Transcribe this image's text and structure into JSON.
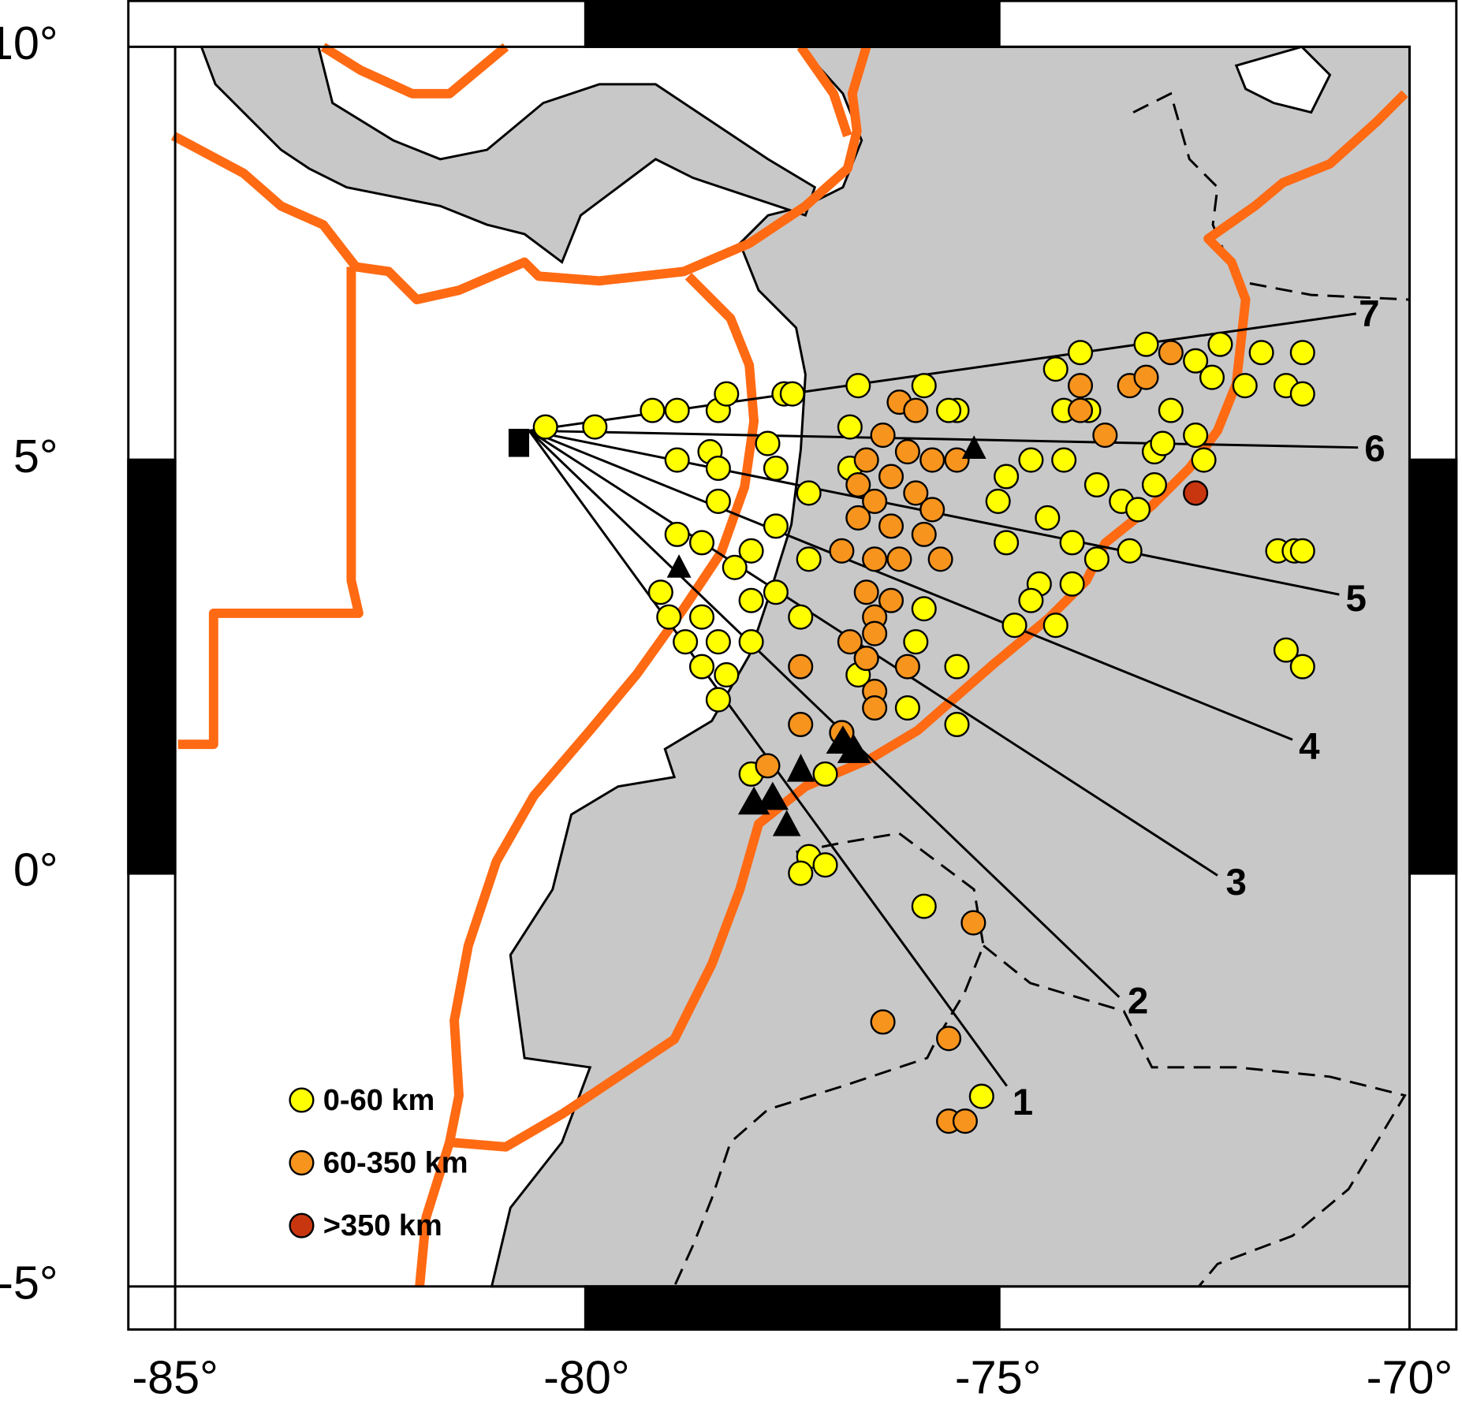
{
  "chart_data": {
    "type": "scatter",
    "xlim": [
      -85,
      -70
    ],
    "ylim": [
      -5,
      10
    ],
    "xticks": [
      {
        "value": -85,
        "label": "-85°"
      },
      {
        "value": -80,
        "label": "-80°"
      },
      {
        "value": -75,
        "label": "-75°"
      },
      {
        "value": -70,
        "label": "-70°"
      }
    ],
    "yticks": [
      {
        "value": 10,
        "label": "10°"
      },
      {
        "value": 5,
        "label": "5°"
      },
      {
        "value": 0,
        "label": "0°"
      },
      {
        "value": -5,
        "label": "-5°"
      }
    ],
    "annotations": [
      "1",
      "2",
      "3",
      "4",
      "5",
      "6",
      "7"
    ],
    "series": [
      {
        "name": "0-60 km",
        "color": "#ffff00",
        "x": [
          -80.5,
          -79.9,
          -79.2,
          -78.9,
          -78.4,
          -78.3,
          -77.6,
          -77.5,
          -76.7,
          -75.9,
          -75.5,
          -76.8,
          -78.9,
          -78.5,
          -78.4,
          -77.8,
          -77.7,
          -77.3,
          -78.9,
          -78.6,
          -78.4,
          -78.0,
          -77.7,
          -77.3,
          -79.1,
          -79.0,
          -78.8,
          -78.6,
          -78.6,
          -78.2,
          -78.0,
          -77.7,
          -77.4,
          -78.4,
          -78.3,
          -78.0,
          -78.4,
          -76.8,
          -74.9,
          -74.6,
          -74.2,
          -75.0,
          -74.9,
          -74.4,
          -74.1,
          -73.8,
          -73.5,
          -73.4,
          -73.8,
          -74.5,
          -74.1,
          -74.6,
          -74.8,
          -74.3,
          -75.9,
          -76.0,
          -76.6,
          -76.7,
          -76.1,
          -75.5,
          -75.5,
          -76.9,
          -77.1,
          -78.0,
          -77.3,
          -77.4,
          -77.1,
          -75.9,
          -75.2,
          -74.3,
          -74.0,
          -74.2,
          -73.9,
          -73.2,
          -72.9,
          -72.6,
          -72.4,
          -72.3,
          -72.0,
          -71.8,
          -71.3,
          -71.5,
          -71.3,
          -73.1,
          -73.0,
          -72.5,
          -72.6,
          -73.1,
          -73.3,
          -71.6,
          -71.4,
          -71.3,
          -71.5,
          -71.3,
          -75.6
        ],
        "y": [
          5.4,
          5.4,
          5.6,
          5.6,
          5.6,
          5.8,
          5.8,
          5.8,
          5.9,
          5.9,
          5.6,
          5.4,
          5.0,
          5.1,
          4.9,
          5.2,
          4.9,
          4.6,
          4.1,
          4.0,
          4.5,
          3.9,
          4.2,
          3.8,
          3.4,
          3.1,
          2.8,
          2.5,
          3.1,
          3.7,
          3.3,
          3.4,
          3.1,
          2.8,
          2.4,
          2.8,
          2.1,
          4.9,
          4.8,
          5.0,
          5.0,
          4.5,
          4.0,
          4.3,
          4.0,
          4.7,
          4.5,
          3.9,
          3.8,
          3.5,
          3.5,
          3.3,
          3.0,
          3.0,
          3.2,
          2.8,
          2.6,
          2.4,
          2.0,
          1.8,
          2.5,
          1.7,
          1.2,
          1.2,
          0.2,
          0.0,
          0.1,
          -0.4,
          -2.7,
          6.1,
          6.3,
          5.6,
          5.6,
          6.4,
          5.6,
          6.2,
          6.0,
          6.4,
          5.9,
          6.3,
          6.3,
          5.9,
          5.8,
          5.1,
          5.2,
          5.0,
          5.3,
          4.7,
          4.4,
          3.9,
          3.9,
          3.9,
          2.7,
          2.5,
          5.6
        ]
      },
      {
        "name": "60-350 km",
        "color": "#f7941d",
        "x": [
          -76.4,
          -76.2,
          -76.0,
          -76.1,
          -76.6,
          -75.8,
          -75.5,
          -76.3,
          -76.7,
          -76.0,
          -76.5,
          -75.8,
          -76.7,
          -76.3,
          -75.9,
          -76.9,
          -76.5,
          -76.2,
          -75.7,
          -76.6,
          -76.3,
          -76.5,
          -76.5,
          -76.8,
          -76.6,
          -76.1,
          -76.5,
          -76.5,
          -77.4,
          -77.4,
          -76.9,
          -77.8,
          -75.3,
          -76.4,
          -75.6,
          -75.6,
          -75.4,
          -74.0,
          -74.0,
          -73.7,
          -73.4,
          -73.2,
          -72.9
        ],
        "y": [
          5.3,
          5.7,
          5.6,
          5.1,
          5.0,
          5.0,
          5.0,
          4.8,
          4.7,
          4.6,
          4.5,
          4.4,
          4.3,
          4.2,
          4.1,
          3.9,
          3.8,
          3.8,
          3.8,
          3.4,
          3.3,
          3.1,
          2.9,
          2.8,
          2.6,
          2.5,
          2.2,
          2.0,
          2.5,
          1.8,
          1.7,
          1.3,
          -0.6,
          -1.8,
          -2.0,
          -3.0,
          -3.0,
          5.9,
          5.6,
          5.3,
          5.9,
          6.0,
          6.3
        ]
      },
      {
        "name": ">350 km",
        "color": "#c8360f",
        "x": [
          -72.6
        ],
        "y": [
          4.6
        ]
      }
    ]
  }
}
